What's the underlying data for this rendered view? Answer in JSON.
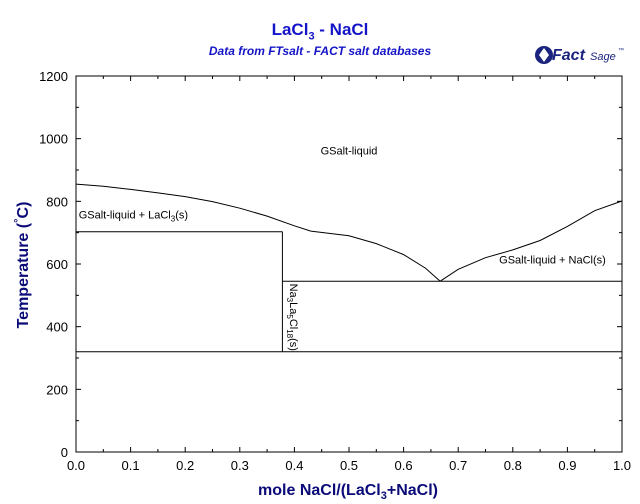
{
  "header": {
    "title_main": "LaCl",
    "title_sub": "3",
    "title_rest": " - NaCl",
    "subtitle": "Data from FTsalt - FACT salt databases",
    "logo_text_a": "Fact",
    "logo_text_b": "Sage",
    "logo_tm": "™"
  },
  "colors": {
    "title": "#1414c8",
    "axis_label": "#0a0a78",
    "line": "#000000",
    "logo": "#1a237e"
  },
  "chart_data": {
    "type": "line",
    "title": "LaCl3 - NaCl",
    "subtitle": "Data from FTsalt - FACT salt databases",
    "xlabel": "mole NaCl/(LaCl3+NaCl)",
    "ylabel": "Temperature (°C)",
    "xlim": [
      0.0,
      1.0
    ],
    "ylim": [
      0,
      1200
    ],
    "xticks": [
      0.0,
      0.1,
      0.2,
      0.3,
      0.4,
      0.5,
      0.6,
      0.7,
      0.8,
      0.9,
      1.0
    ],
    "xtick_labels": [
      "0.0",
      "0.1",
      "0.2",
      "0.3",
      "0.4",
      "0.5",
      "0.6",
      "0.7",
      "0.8",
      "0.9",
      "1.0"
    ],
    "yticks": [
      0,
      200,
      400,
      600,
      800,
      1000,
      1200
    ],
    "ytick_labels": [
      "0",
      "200",
      "400",
      "600",
      "800",
      "1000",
      "1200"
    ],
    "grid": false,
    "series": [
      {
        "x": [
          0.0,
          0.05,
          0.1,
          0.15,
          0.2,
          0.25,
          0.3,
          0.35,
          0.4,
          0.43
        ],
        "y": [
          855,
          848,
          838,
          827,
          815,
          799,
          778,
          753,
          722,
          705
        ]
      },
      {
        "x": [
          0.43,
          0.5,
          0.55,
          0.6,
          0.64,
          0.667
        ],
        "y": [
          705,
          690,
          665,
          630,
          587,
          545
        ]
      },
      {
        "x": [
          0.667,
          0.7,
          0.75,
          0.8,
          0.85,
          0.9,
          0.95,
          1.0
        ],
        "y": [
          545,
          583,
          620,
          645,
          675,
          720,
          770,
          801
        ]
      },
      {
        "x": [
          0.0,
          0.378
        ],
        "y": [
          703,
          703
        ]
      },
      {
        "x": [
          0.378,
          1.0
        ],
        "y": [
          545,
          545
        ]
      },
      {
        "x": [
          0.378,
          0.378
        ],
        "y": [
          703,
          320
        ]
      },
      {
        "x": [
          0.0,
          1.0
        ],
        "y": [
          320,
          320
        ]
      }
    ],
    "annotations": [
      {
        "text": "GSalt-liquid",
        "x": 0.5,
        "y": 950
      },
      {
        "text": "GSalt-liquid + LaCl",
        "sub": "3",
        "tail": "(s)",
        "x": 0.005,
        "y": 745
      },
      {
        "text": "GSalt-liquid + NaCl(s)",
        "x": 0.775,
        "y": 602
      },
      {
        "text": "Na",
        "sub": "3",
        "mid": "La",
        "sub2": "5",
        "mid2": "Cl",
        "sub3": "18",
        "tail": "(s)",
        "x": 0.385,
        "y": 430,
        "vertical": true
      }
    ],
    "xlabel_parts": {
      "a": "mole NaCl/(LaCl",
      "sub": "3",
      "b": "+NaCl)"
    },
    "ylabel_parts": {
      "a": "Temperature (",
      "deg": "°",
      "b": "C)"
    }
  }
}
